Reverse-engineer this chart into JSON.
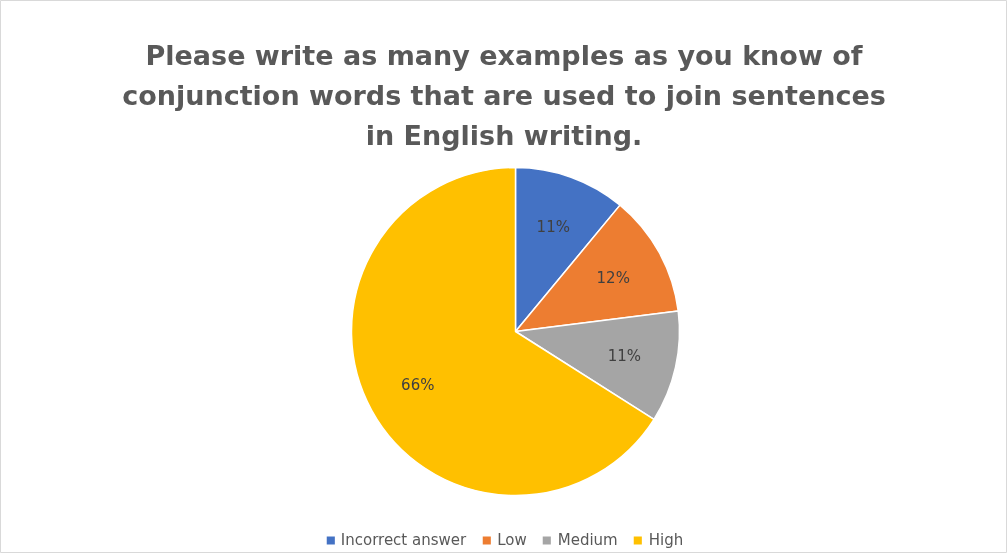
{
  "chart_data": {
    "type": "pie",
    "title": "Please write as many examples as you know of conjunction words that are used to join sentences in English writing.",
    "categories": [
      "Incorrect answer",
      "Low",
      "Medium",
      "High"
    ],
    "values": [
      11,
      12,
      11,
      66
    ],
    "colors": [
      "#4472c4",
      "#ed7d31",
      "#a5a5a5",
      "#ffc000"
    ],
    "value_labels": [
      "11%",
      "12%",
      "11%",
      "66%"
    ],
    "legend": "bottom"
  }
}
